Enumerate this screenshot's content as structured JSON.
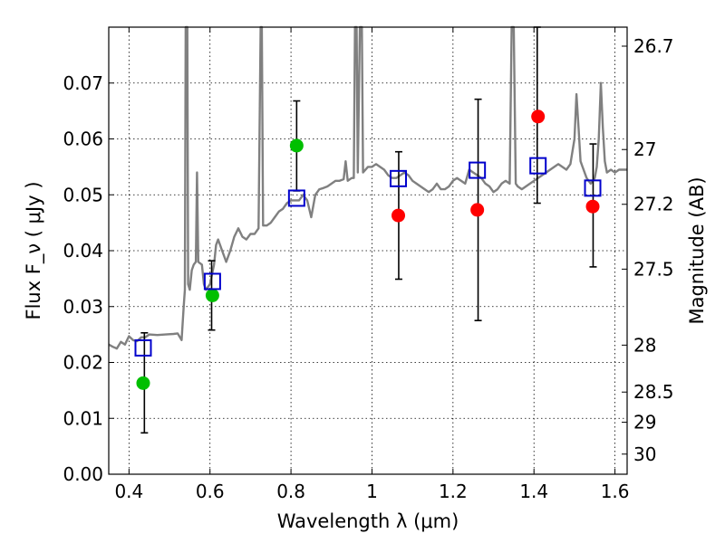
{
  "chart_data": {
    "type": "scatter",
    "xlabel": "Wavelength  λ (μm)",
    "ylabel": "Flux  F_ν  ( μJy )",
    "ylabel_right": "Magnitude (AB)",
    "xlim": [
      0.35,
      1.63
    ],
    "ylim": [
      0.0,
      0.08
    ],
    "grid": true,
    "x_ticks": [
      0.4,
      0.6,
      0.8,
      1.0,
      1.2,
      1.4,
      1.6
    ],
    "x_tick_labels": [
      "0.4",
      "0.6",
      "0.8",
      "1",
      "1.2",
      "1.4",
      "1.6"
    ],
    "y_ticks": [
      0.0,
      0.01,
      0.02,
      0.03,
      0.04,
      0.05,
      0.06,
      0.07
    ],
    "y_tick_labels": [
      "0.00",
      "0.01",
      "0.02",
      "0.03",
      "0.04",
      "0.05",
      "0.06",
      "0.07"
    ],
    "right_ticks": [
      {
        "label": "26.7",
        "flux": 0.0766
      },
      {
        "label": "27",
        "flux": 0.0581
      },
      {
        "label": "27.2",
        "flux": 0.0483
      },
      {
        "label": "27.5",
        "flux": 0.0367
      },
      {
        "label": "28",
        "flux": 0.0231
      },
      {
        "label": "28.5",
        "flux": 0.0147
      },
      {
        "label": "29",
        "flux": 0.0093
      },
      {
        "label": "30",
        "flux": 0.0036
      }
    ],
    "series": [
      {
        "marker": "circle",
        "color": "#00bf00",
        "points": [
          {
            "x": 0.435,
            "y": 0.0163
          },
          {
            "x": 0.606,
            "y": 0.032
          },
          {
            "x": 0.814,
            "y": 0.0588
          }
        ]
      },
      {
        "marker": "circle",
        "color": "#ff0000",
        "points": [
          {
            "x": 1.065,
            "y": 0.0463
          },
          {
            "x": 1.26,
            "y": 0.0473
          },
          {
            "x": 1.41,
            "y": 0.064
          },
          {
            "x": 1.545,
            "y": 0.0479
          }
        ]
      },
      {
        "marker": "open-square",
        "color": "#0000cc",
        "points": [
          {
            "x": 0.435,
            "y": 0.0226
          },
          {
            "x": 0.606,
            "y": 0.0345
          },
          {
            "x": 0.814,
            "y": 0.0494
          },
          {
            "x": 1.065,
            "y": 0.0529
          },
          {
            "x": 1.26,
            "y": 0.0544
          },
          {
            "x": 1.41,
            "y": 0.0552
          },
          {
            "x": 1.545,
            "y": 0.0512
          }
        ]
      },
      {
        "marker": "errorbar",
        "color": "#000000",
        "bars": [
          {
            "x": 0.438,
            "low": 0.0074,
            "high": 0.0253
          },
          {
            "x": 0.604,
            "low": 0.0258,
            "high": 0.0382
          },
          {
            "x": 0.814,
            "low": 0.0507,
            "high": 0.0668
          },
          {
            "x": 1.066,
            "low": 0.0349,
            "high": 0.0577
          },
          {
            "x": 1.262,
            "low": 0.0275,
            "high": 0.0671
          },
          {
            "x": 1.408,
            "low": 0.0485,
            "high": 0.08
          },
          {
            "x": 1.546,
            "low": 0.0371,
            "high": 0.0591
          }
        ]
      },
      {
        "marker": "line",
        "color": "#808080",
        "points": [
          [
            0.35,
            0.0232
          ],
          [
            0.36,
            0.0228
          ],
          [
            0.37,
            0.0225
          ],
          [
            0.38,
            0.0237
          ],
          [
            0.39,
            0.0232
          ],
          [
            0.4,
            0.0247
          ],
          [
            0.41,
            0.024
          ],
          [
            0.42,
            0.0238
          ],
          [
            0.43,
            0.0245
          ],
          [
            0.44,
            0.0245
          ],
          [
            0.45,
            0.025
          ],
          [
            0.47,
            0.0249
          ],
          [
            0.49,
            0.025
          ],
          [
            0.51,
            0.0251
          ],
          [
            0.52,
            0.0252
          ],
          [
            0.53,
            0.024
          ],
          [
            0.535,
            0.03
          ],
          [
            0.538,
            0.033
          ],
          [
            0.54,
            0.08
          ],
          [
            0.544,
            0.08
          ],
          [
            0.546,
            0.034
          ],
          [
            0.55,
            0.033
          ],
          [
            0.555,
            0.0365
          ],
          [
            0.56,
            0.0375
          ],
          [
            0.565,
            0.038
          ],
          [
            0.568,
            0.054
          ],
          [
            0.571,
            0.038
          ],
          [
            0.58,
            0.0375
          ],
          [
            0.585,
            0.034
          ],
          [
            0.59,
            0.033
          ],
          [
            0.6,
            0.034
          ],
          [
            0.61,
            0.0375
          ],
          [
            0.615,
            0.041
          ],
          [
            0.62,
            0.042
          ],
          [
            0.63,
            0.04
          ],
          [
            0.64,
            0.038
          ],
          [
            0.65,
            0.04
          ],
          [
            0.66,
            0.0425
          ],
          [
            0.67,
            0.044
          ],
          [
            0.68,
            0.0425
          ],
          [
            0.69,
            0.042
          ],
          [
            0.7,
            0.043
          ],
          [
            0.71,
            0.043
          ],
          [
            0.72,
            0.044
          ],
          [
            0.725,
            0.08
          ],
          [
            0.728,
            0.08
          ],
          [
            0.731,
            0.0445
          ],
          [
            0.74,
            0.0445
          ],
          [
            0.75,
            0.045
          ],
          [
            0.76,
            0.046
          ],
          [
            0.77,
            0.047
          ],
          [
            0.78,
            0.0475
          ],
          [
            0.79,
            0.0485
          ],
          [
            0.8,
            0.049
          ],
          [
            0.81,
            0.049
          ],
          [
            0.82,
            0.049
          ],
          [
            0.83,
            0.05
          ],
          [
            0.84,
            0.049
          ],
          [
            0.85,
            0.046
          ],
          [
            0.86,
            0.05
          ],
          [
            0.87,
            0.051
          ],
          [
            0.88,
            0.0512
          ],
          [
            0.89,
            0.0515
          ],
          [
            0.9,
            0.052
          ],
          [
            0.91,
            0.0525
          ],
          [
            0.92,
            0.0525
          ],
          [
            0.93,
            0.0528
          ],
          [
            0.935,
            0.056
          ],
          [
            0.94,
            0.0525
          ],
          [
            0.95,
            0.053
          ],
          [
            0.955,
            0.053
          ],
          [
            0.958,
            0.08
          ],
          [
            0.962,
            0.08
          ],
          [
            0.965,
            0.054
          ],
          [
            0.97,
            0.08
          ],
          [
            0.975,
            0.08
          ],
          [
            0.978,
            0.054
          ],
          [
            0.99,
            0.055
          ],
          [
            1.0,
            0.055
          ],
          [
            1.01,
            0.0555
          ],
          [
            1.02,
            0.055
          ],
          [
            1.03,
            0.0545
          ],
          [
            1.04,
            0.0535
          ],
          [
            1.05,
            0.053
          ],
          [
            1.06,
            0.053
          ],
          [
            1.07,
            0.0535
          ],
          [
            1.08,
            0.054
          ],
          [
            1.09,
            0.0535
          ],
          [
            1.1,
            0.0525
          ],
          [
            1.11,
            0.052
          ],
          [
            1.12,
            0.0515
          ],
          [
            1.13,
            0.051
          ],
          [
            1.14,
            0.0505
          ],
          [
            1.15,
            0.051
          ],
          [
            1.16,
            0.052
          ],
          [
            1.17,
            0.051
          ],
          [
            1.18,
            0.051
          ],
          [
            1.19,
            0.0515
          ],
          [
            1.2,
            0.0525
          ],
          [
            1.21,
            0.053
          ],
          [
            1.22,
            0.0525
          ],
          [
            1.23,
            0.052
          ],
          [
            1.24,
            0.0545
          ],
          [
            1.25,
            0.054
          ],
          [
            1.26,
            0.0535
          ],
          [
            1.27,
            0.053
          ],
          [
            1.28,
            0.052
          ],
          [
            1.29,
            0.0515
          ],
          [
            1.3,
            0.0505
          ],
          [
            1.31,
            0.051
          ],
          [
            1.32,
            0.052
          ],
          [
            1.33,
            0.0525
          ],
          [
            1.34,
            0.052
          ],
          [
            1.345,
            0.08
          ],
          [
            1.35,
            0.08
          ],
          [
            1.355,
            0.052
          ],
          [
            1.36,
            0.0515
          ],
          [
            1.37,
            0.051
          ],
          [
            1.38,
            0.0515
          ],
          [
            1.39,
            0.052
          ],
          [
            1.4,
            0.0525
          ],
          [
            1.41,
            0.053
          ],
          [
            1.42,
            0.0535
          ],
          [
            1.43,
            0.054
          ],
          [
            1.44,
            0.0545
          ],
          [
            1.45,
            0.055
          ],
          [
            1.46,
            0.0555
          ],
          [
            1.47,
            0.055
          ],
          [
            1.48,
            0.0545
          ],
          [
            1.49,
            0.0555
          ],
          [
            1.5,
            0.06
          ],
          [
            1.505,
            0.068
          ],
          [
            1.51,
            0.062
          ],
          [
            1.515,
            0.056
          ],
          [
            1.52,
            0.055
          ],
          [
            1.53,
            0.053
          ],
          [
            1.54,
            0.052
          ],
          [
            1.55,
            0.053
          ],
          [
            1.555,
            0.055
          ],
          [
            1.56,
            0.06
          ],
          [
            1.565,
            0.07
          ],
          [
            1.57,
            0.062
          ],
          [
            1.575,
            0.056
          ],
          [
            1.58,
            0.054
          ],
          [
            1.59,
            0.0545
          ],
          [
            1.6,
            0.054
          ],
          [
            1.61,
            0.0545
          ],
          [
            1.62,
            0.0545
          ],
          [
            1.63,
            0.0545
          ]
        ]
      }
    ]
  }
}
